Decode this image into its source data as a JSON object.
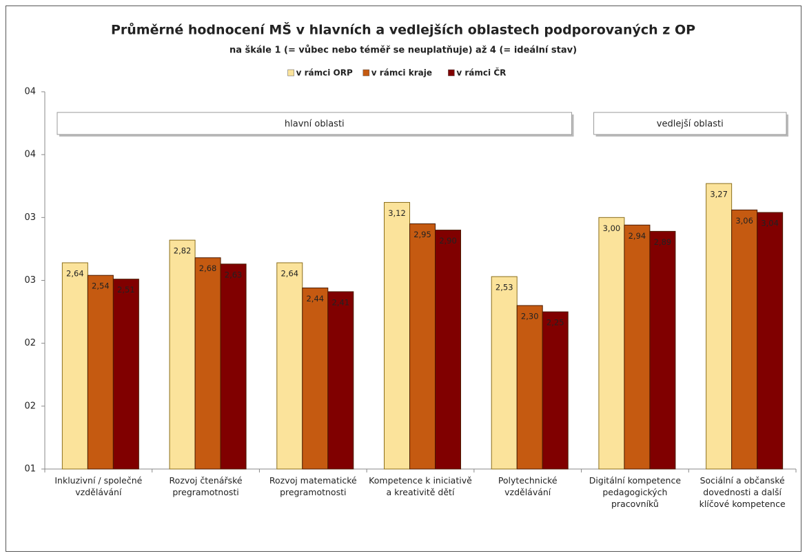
{
  "chart_data": {
    "type": "bar",
    "title": "Průměrné hodnocení MŠ v hlavních a vedlejších oblastech podporovaných z OP",
    "subtitle": "na škále 1 (= vůbec nebo téměř se neuplatňuje) až 4 (= ideální stav)",
    "categories": [
      "Inkluzivní / společné vzdělávání",
      "Rozvoj čtenářské pregramotnosti",
      "Rozvoj matematické pregramotnosti",
      "Kompetence k iniciativě a kreativitě dětí",
      "Polytechnické vzdělávání",
      "Digitální kompetence pedagogických pracovníků",
      "Sociální a občanské dovednosti a další klíčové kompetence"
    ],
    "groups": [
      {
        "label": "hlavní oblasti",
        "count": 5
      },
      {
        "label": "vedlejší oblasti",
        "count": 2
      }
    ],
    "series": [
      {
        "name": "v rámci ORP",
        "color": "#fbe39b",
        "values": [
          2.64,
          2.82,
          2.64,
          3.12,
          2.53,
          3.0,
          3.27
        ],
        "value_labels": [
          "2,64",
          "2,82",
          "2,64",
          "3,12",
          "2,53",
          "3,00",
          "3,27"
        ]
      },
      {
        "name": "v rámci kraje",
        "color": "#c55a11",
        "values": [
          2.54,
          2.68,
          2.44,
          2.95,
          2.3,
          2.94,
          3.06
        ],
        "value_labels": [
          "2,54",
          "2,68",
          "2,44",
          "2,95",
          "2,30",
          "2,94",
          "3,06"
        ]
      },
      {
        "name": "v rámci ČR",
        "color": "#800000",
        "values": [
          2.51,
          2.63,
          2.41,
          2.9,
          2.25,
          2.89,
          3.04
        ],
        "value_labels": [
          "2,51",
          "2,63",
          "2,41",
          "2,90",
          "2,25",
          "2,89",
          "3,04"
        ]
      }
    ],
    "ylim": [
      1.0,
      4.0
    ],
    "yticks": [
      {
        "value": 1.0,
        "label": "01"
      },
      {
        "value": 1.5,
        "label": "02"
      },
      {
        "value": 2.0,
        "label": "02"
      },
      {
        "value": 2.5,
        "label": "03"
      },
      {
        "value": 3.0,
        "label": "03"
      },
      {
        "value": 3.5,
        "label": "04"
      },
      {
        "value": 4.0,
        "label": "04"
      }
    ],
    "legend": "top"
  }
}
